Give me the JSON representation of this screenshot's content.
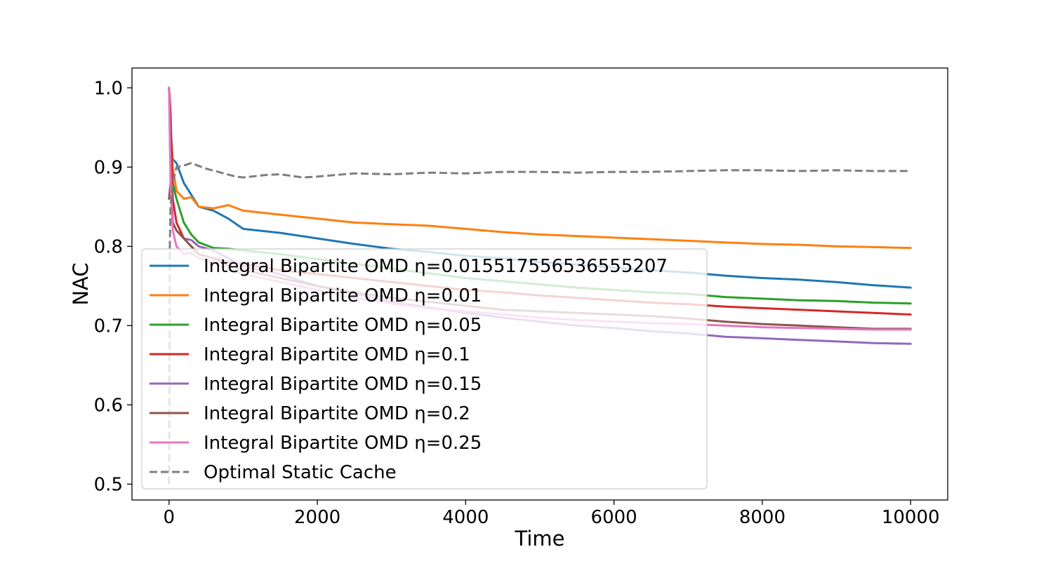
{
  "chart_data": {
    "type": "line",
    "title": "",
    "xlabel": "Time",
    "ylabel": "NAC",
    "xlim": [
      -500,
      10500
    ],
    "ylim": [
      0.48,
      1.025
    ],
    "xticks": [
      0,
      2000,
      4000,
      6000,
      8000,
      10000
    ],
    "xtick_labels": [
      "0",
      "2000",
      "4000",
      "6000",
      "8000",
      "10000"
    ],
    "yticks": [
      0.5,
      0.6,
      0.7,
      0.8,
      0.9,
      1.0
    ],
    "ytick_labels": [
      "0.5",
      "0.6",
      "0.7",
      "0.8",
      "0.9",
      "1.0"
    ],
    "grid": false,
    "legend_position": "lower-left",
    "series": [
      {
        "name": "Integral Bipartite OMD η=0.015517556536555207",
        "color": "#1f77b4",
        "dashed": false,
        "points": [
          [
            0,
            1.0
          ],
          [
            20,
            0.95
          ],
          [
            50,
            0.91
          ],
          [
            100,
            0.905
          ],
          [
            200,
            0.88
          ],
          [
            300,
            0.865
          ],
          [
            400,
            0.85
          ],
          [
            600,
            0.845
          ],
          [
            800,
            0.835
          ],
          [
            1000,
            0.822
          ],
          [
            1500,
            0.817
          ],
          [
            2000,
            0.81
          ],
          [
            2500,
            0.803
          ],
          [
            3000,
            0.797
          ],
          [
            3500,
            0.793
          ],
          [
            4000,
            0.788
          ],
          [
            4500,
            0.785
          ],
          [
            5000,
            0.78
          ],
          [
            5500,
            0.777
          ],
          [
            6000,
            0.773
          ],
          [
            6500,
            0.77
          ],
          [
            7000,
            0.767
          ],
          [
            7500,
            0.763
          ],
          [
            8000,
            0.76
          ],
          [
            8500,
            0.758
          ],
          [
            9000,
            0.755
          ],
          [
            9500,
            0.751
          ],
          [
            10000,
            0.748
          ]
        ]
      },
      {
        "name": "Integral Bipartite OMD η=0.01",
        "color": "#ff7f0e",
        "dashed": false,
        "points": [
          [
            0,
            1.0
          ],
          [
            20,
            0.95
          ],
          [
            50,
            0.9
          ],
          [
            100,
            0.87
          ],
          [
            200,
            0.86
          ],
          [
            300,
            0.862
          ],
          [
            400,
            0.85
          ],
          [
            600,
            0.848
          ],
          [
            800,
            0.852
          ],
          [
            1000,
            0.845
          ],
          [
            1500,
            0.84
          ],
          [
            2000,
            0.835
          ],
          [
            2500,
            0.83
          ],
          [
            3000,
            0.828
          ],
          [
            3500,
            0.826
          ],
          [
            4000,
            0.822
          ],
          [
            4500,
            0.818
          ],
          [
            5000,
            0.815
          ],
          [
            5500,
            0.813
          ],
          [
            6000,
            0.811
          ],
          [
            6500,
            0.809
          ],
          [
            7000,
            0.807
          ],
          [
            7500,
            0.805
          ],
          [
            8000,
            0.803
          ],
          [
            8500,
            0.802
          ],
          [
            9000,
            0.8
          ],
          [
            9500,
            0.799
          ],
          [
            10000,
            0.798
          ]
        ]
      },
      {
        "name": "Integral Bipartite OMD η=0.05",
        "color": "#2ca02c",
        "dashed": false,
        "points": [
          [
            0,
            1.0
          ],
          [
            20,
            0.93
          ],
          [
            50,
            0.88
          ],
          [
            100,
            0.86
          ],
          [
            200,
            0.83
          ],
          [
            300,
            0.815
          ],
          [
            400,
            0.805
          ],
          [
            600,
            0.798
          ],
          [
            800,
            0.797
          ],
          [
            1000,
            0.795
          ],
          [
            1500,
            0.79
          ],
          [
            2000,
            0.784
          ],
          [
            2500,
            0.778
          ],
          [
            3000,
            0.772
          ],
          [
            3500,
            0.766
          ],
          [
            4000,
            0.76
          ],
          [
            4500,
            0.756
          ],
          [
            5000,
            0.752
          ],
          [
            5500,
            0.748
          ],
          [
            6000,
            0.745
          ],
          [
            6500,
            0.742
          ],
          [
            7000,
            0.74
          ],
          [
            7500,
            0.736
          ],
          [
            8000,
            0.734
          ],
          [
            8500,
            0.732
          ],
          [
            9000,
            0.731
          ],
          [
            9500,
            0.729
          ],
          [
            10000,
            0.728
          ]
        ]
      },
      {
        "name": "Integral Bipartite OMD η=0.1",
        "color": "#d62728",
        "dashed": false,
        "points": [
          [
            0,
            1.0
          ],
          [
            20,
            0.97
          ],
          [
            50,
            0.86
          ],
          [
            100,
            0.83
          ],
          [
            200,
            0.81
          ],
          [
            300,
            0.8
          ],
          [
            400,
            0.79
          ],
          [
            600,
            0.785
          ],
          [
            800,
            0.78
          ],
          [
            1000,
            0.778
          ],
          [
            1500,
            0.77
          ],
          [
            2000,
            0.765
          ],
          [
            2500,
            0.76
          ],
          [
            3000,
            0.755
          ],
          [
            3500,
            0.75
          ],
          [
            4000,
            0.745
          ],
          [
            4500,
            0.742
          ],
          [
            5000,
            0.738
          ],
          [
            5500,
            0.735
          ],
          [
            6000,
            0.732
          ],
          [
            6500,
            0.729
          ],
          [
            7000,
            0.727
          ],
          [
            7500,
            0.724
          ],
          [
            8000,
            0.722
          ],
          [
            8500,
            0.72
          ],
          [
            9000,
            0.718
          ],
          [
            9500,
            0.716
          ],
          [
            10000,
            0.714
          ]
        ]
      },
      {
        "name": "Integral Bipartite OMD η=0.15",
        "color": "#9467bd",
        "dashed": false,
        "points": [
          [
            0,
            1.0
          ],
          [
            20,
            0.9
          ],
          [
            50,
            0.83
          ],
          [
            100,
            0.82
          ],
          [
            200,
            0.81
          ],
          [
            300,
            0.808
          ],
          [
            400,
            0.8
          ],
          [
            600,
            0.795
          ],
          [
            800,
            0.785
          ],
          [
            1000,
            0.775
          ],
          [
            1500,
            0.765
          ],
          [
            2000,
            0.75
          ],
          [
            2500,
            0.74
          ],
          [
            3000,
            0.73
          ],
          [
            3500,
            0.723
          ],
          [
            4000,
            0.716
          ],
          [
            4500,
            0.71
          ],
          [
            5000,
            0.705
          ],
          [
            5500,
            0.7
          ],
          [
            6000,
            0.697
          ],
          [
            6500,
            0.693
          ],
          [
            7000,
            0.69
          ],
          [
            7500,
            0.686
          ],
          [
            8000,
            0.684
          ],
          [
            8500,
            0.682
          ],
          [
            9000,
            0.68
          ],
          [
            9500,
            0.678
          ],
          [
            10000,
            0.677
          ]
        ]
      },
      {
        "name": "Integral Bipartite OMD η=0.2",
        "color": "#8c564b",
        "dashed": false,
        "points": [
          [
            0,
            0.86
          ],
          [
            20,
            0.88
          ],
          [
            50,
            0.83
          ],
          [
            100,
            0.82
          ],
          [
            200,
            0.81
          ],
          [
            300,
            0.8
          ],
          [
            400,
            0.79
          ],
          [
            600,
            0.785
          ],
          [
            800,
            0.775
          ],
          [
            1000,
            0.77
          ],
          [
            1500,
            0.76
          ],
          [
            2000,
            0.75
          ],
          [
            2500,
            0.742
          ],
          [
            3000,
            0.735
          ],
          [
            3500,
            0.73
          ],
          [
            4000,
            0.725
          ],
          [
            4500,
            0.72
          ],
          [
            5000,
            0.718
          ],
          [
            5500,
            0.716
          ],
          [
            6000,
            0.714
          ],
          [
            6500,
            0.712
          ],
          [
            7000,
            0.709
          ],
          [
            7500,
            0.705
          ],
          [
            8000,
            0.702
          ],
          [
            8500,
            0.7
          ],
          [
            9000,
            0.698
          ],
          [
            9500,
            0.696
          ],
          [
            10000,
            0.696
          ]
        ]
      },
      {
        "name": "Integral Bipartite OMD η=0.25",
        "color": "#e377c2",
        "dashed": false,
        "points": [
          [
            0,
            1.0
          ],
          [
            20,
            0.88
          ],
          [
            50,
            0.82
          ],
          [
            100,
            0.8
          ],
          [
            200,
            0.79
          ],
          [
            300,
            0.792
          ],
          [
            400,
            0.785
          ],
          [
            600,
            0.78
          ],
          [
            800,
            0.77
          ],
          [
            1000,
            0.765
          ],
          [
            1500,
            0.755
          ],
          [
            2000,
            0.745
          ],
          [
            2500,
            0.735
          ],
          [
            3000,
            0.728
          ],
          [
            3500,
            0.722
          ],
          [
            4000,
            0.718
          ],
          [
            4500,
            0.714
          ],
          [
            5000,
            0.71
          ],
          [
            5500,
            0.707
          ],
          [
            6000,
            0.705
          ],
          [
            6500,
            0.703
          ],
          [
            7000,
            0.702
          ],
          [
            7500,
            0.7
          ],
          [
            8000,
            0.698
          ],
          [
            8500,
            0.697
          ],
          [
            9000,
            0.696
          ],
          [
            9500,
            0.695
          ],
          [
            10000,
            0.695
          ]
        ]
      },
      {
        "name": "Optimal Static Cache",
        "color": "#7f7f7f",
        "dashed": true,
        "points": [
          [
            0,
            0.5
          ],
          [
            5,
            0.6
          ],
          [
            10,
            0.8
          ],
          [
            20,
            0.85
          ],
          [
            50,
            0.88
          ],
          [
            100,
            0.9
          ],
          [
            200,
            0.902
          ],
          [
            300,
            0.905
          ],
          [
            500,
            0.898
          ],
          [
            700,
            0.893
          ],
          [
            900,
            0.888
          ],
          [
            1000,
            0.887
          ],
          [
            1300,
            0.89
          ],
          [
            1500,
            0.891
          ],
          [
            1800,
            0.887
          ],
          [
            2000,
            0.888
          ],
          [
            2500,
            0.892
          ],
          [
            3000,
            0.891
          ],
          [
            3500,
            0.893
          ],
          [
            4000,
            0.892
          ],
          [
            4500,
            0.894
          ],
          [
            5000,
            0.894
          ],
          [
            5500,
            0.893
          ],
          [
            6000,
            0.894
          ],
          [
            6500,
            0.894
          ],
          [
            7000,
            0.895
          ],
          [
            7500,
            0.896
          ],
          [
            8000,
            0.896
          ],
          [
            8500,
            0.895
          ],
          [
            9000,
            0.896
          ],
          [
            9500,
            0.895
          ],
          [
            10000,
            0.895
          ]
        ]
      }
    ]
  }
}
